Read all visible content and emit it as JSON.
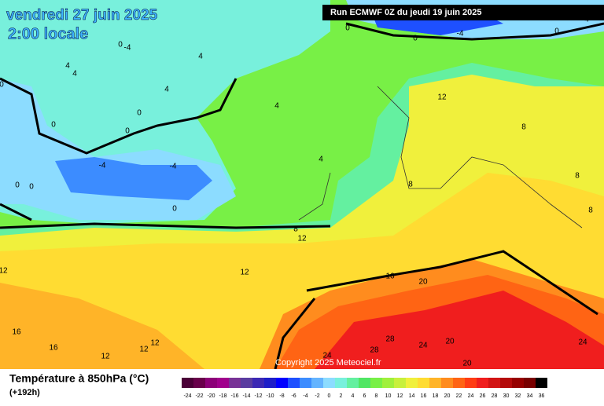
{
  "header": {
    "title": "vendredi 27 juin 2025",
    "subtitle": "2:00 locale",
    "run": "Run ECMWF 0Z du jeudi 19 juin 2025"
  },
  "copyright": "Copyright 2025 Meteociel.fr",
  "legend": {
    "title": "Température à 850hPa (°C)",
    "lead": "(+192h)",
    "labels": [
      -24,
      -22,
      -20,
      -18,
      -16,
      -14,
      -12,
      -10,
      -8,
      -6,
      -4,
      -2,
      0,
      2,
      4,
      6,
      8,
      10,
      12,
      14,
      16,
      18,
      20,
      22,
      24,
      26,
      28,
      30,
      32,
      34,
      36
    ],
    "colors": [
      "#4b0037",
      "#69004b",
      "#8c0078",
      "#a0008c",
      "#783296",
      "#5a3ca0",
      "#3c28b4",
      "#1e1ec8",
      "#0000ff",
      "#1e50ff",
      "#3c8cff",
      "#64b4ff",
      "#8cdcff",
      "#78f0dc",
      "#64f0a0",
      "#50e664",
      "#78f046",
      "#a0f03c",
      "#c8f03c",
      "#f0f03c",
      "#ffdc32",
      "#ffb428",
      "#ff8c1e",
      "#ff6414",
      "#ff3c14",
      "#f01e1e",
      "#d21414",
      "#b40a0a",
      "#960000",
      "#780000",
      "#000000"
    ]
  },
  "contour_labels": [
    "0",
    "0",
    "-4",
    "0",
    "4",
    "0",
    "-4",
    "4",
    "4",
    "4",
    "0",
    "4",
    "12",
    "0",
    "4",
    "0",
    "0",
    "8",
    "4",
    "-4",
    "-4",
    "8",
    "8",
    "0",
    "0",
    "0",
    "8",
    "8",
    "12",
    "12",
    "16",
    "20",
    "12",
    "16",
    "16",
    "28",
    "12",
    "12",
    "12",
    "24",
    "20",
    "28",
    "24",
    "24",
    "20"
  ]
}
